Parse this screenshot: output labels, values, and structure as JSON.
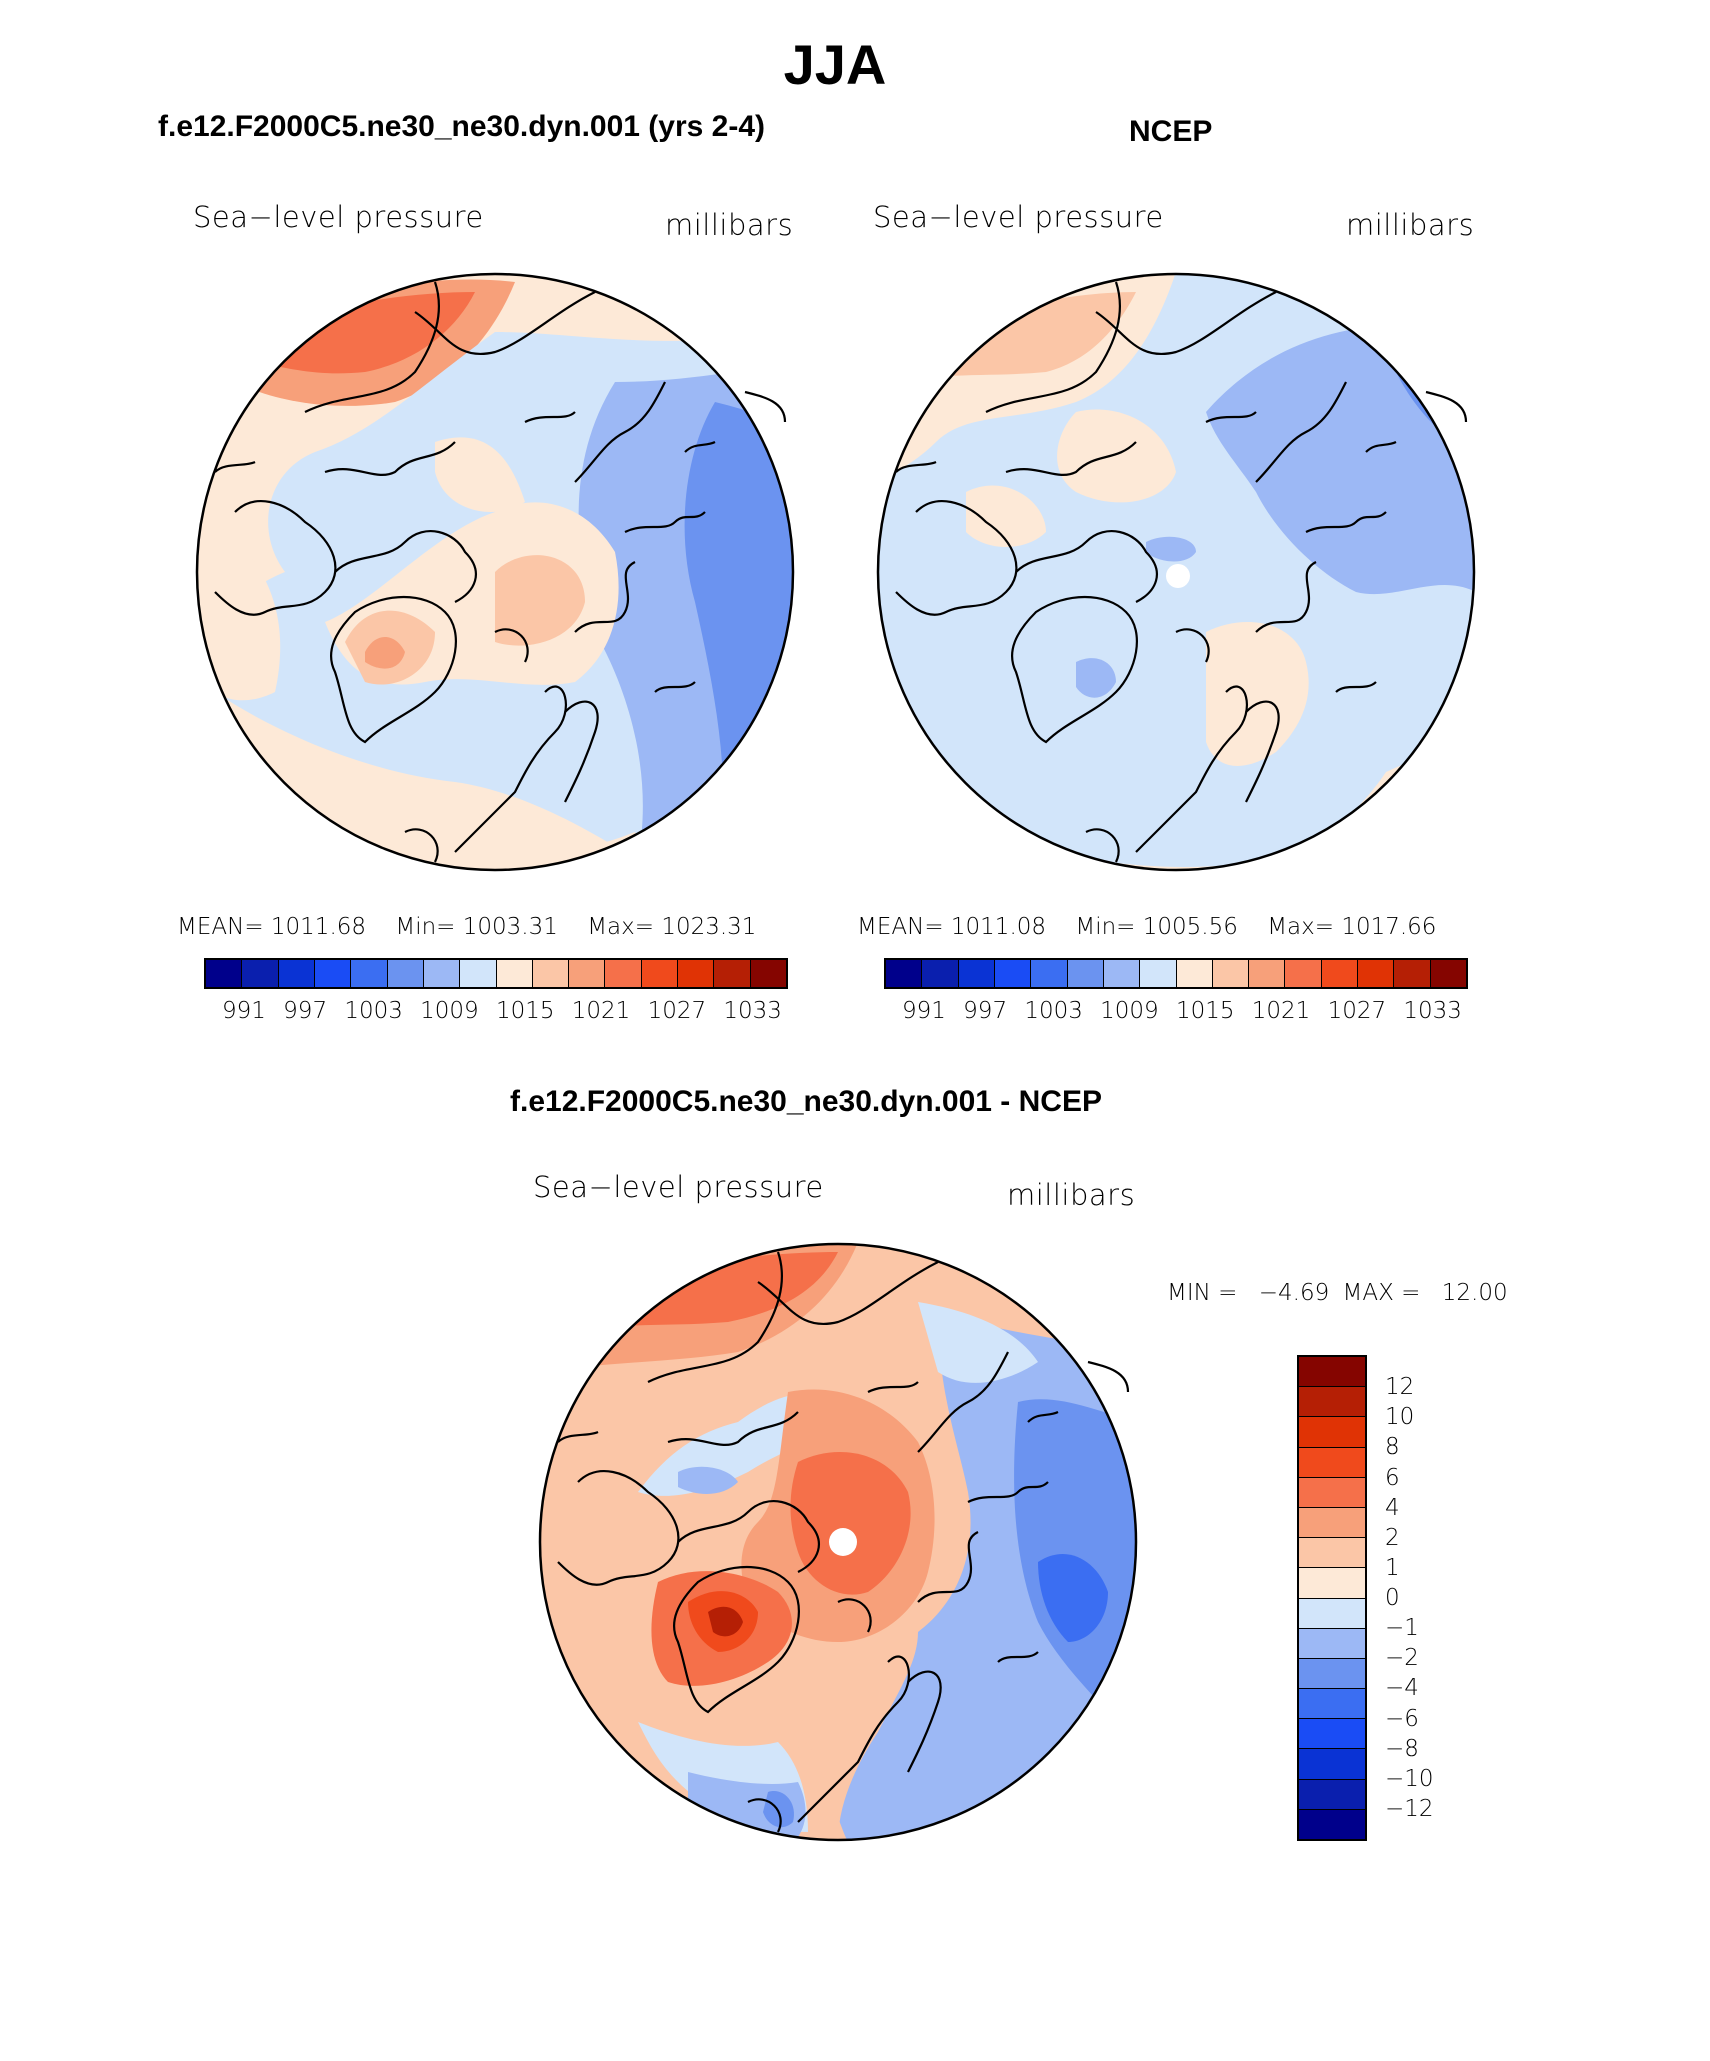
{
  "figure_title": "JJA",
  "panels": {
    "model": {
      "title": "f.e12.F2000C5.ne30_ne30.dyn.001 (yrs 2-4)",
      "left_label": "Sea−level pressure",
      "right_label": "millibars",
      "mean_label": "MEAN=",
      "mean_value": "1011.68",
      "min_label": "Min=",
      "min_value": "1003.31",
      "max_label": "Max=",
      "max_value": "1023.31"
    },
    "obs": {
      "title": "NCEP",
      "left_label": "Sea−level pressure",
      "right_label": "millibars",
      "mean_label": "MEAN=",
      "mean_value": "1011.08",
      "min_label": "Min=",
      "min_value": "1005.56",
      "max_label": "Max=",
      "max_value": "1017.66"
    },
    "diff": {
      "title": "f.e12.F2000C5.ne30_ne30.dyn.001 - NCEP",
      "left_label": "Sea−level pressure",
      "right_label": "millibars",
      "min_label": "MIN =",
      "min_value": "−4.69",
      "max_label": "MAX =",
      "max_value": "12.00"
    }
  },
  "colorbar_abs": {
    "colors": [
      "#00008b",
      "#0a1fae",
      "#0a33d4",
      "#1a4cf5",
      "#3b6ef2",
      "#6b93f0",
      "#9cb8f5",
      "#d2e5fa",
      "#fde9d7",
      "#fbc6a7",
      "#f7a07a",
      "#f5704a",
      "#f04a1c",
      "#e03305",
      "#b51f05",
      "#850500"
    ],
    "labels": [
      "991",
      "997",
      "1003",
      "1009",
      "1015",
      "1021",
      "1027",
      "1033"
    ]
  },
  "colorbar_diff": {
    "colors_top_to_bottom": [
      "#850500",
      "#b51f05",
      "#e03305",
      "#f04a1c",
      "#f5704a",
      "#f7a07a",
      "#fbc6a7",
      "#fde9d7",
      "#d2e5fa",
      "#9cb8f5",
      "#6b93f0",
      "#3b6ef2",
      "#1a4cf5",
      "#0a33d4",
      "#0a1fae",
      "#00008b"
    ],
    "labels": [
      "12",
      "10",
      "8",
      "6",
      "4",
      "2",
      "1",
      "0",
      "−1",
      "−2",
      "−4",
      "−6",
      "−8",
      "−10",
      "−12"
    ]
  }
}
